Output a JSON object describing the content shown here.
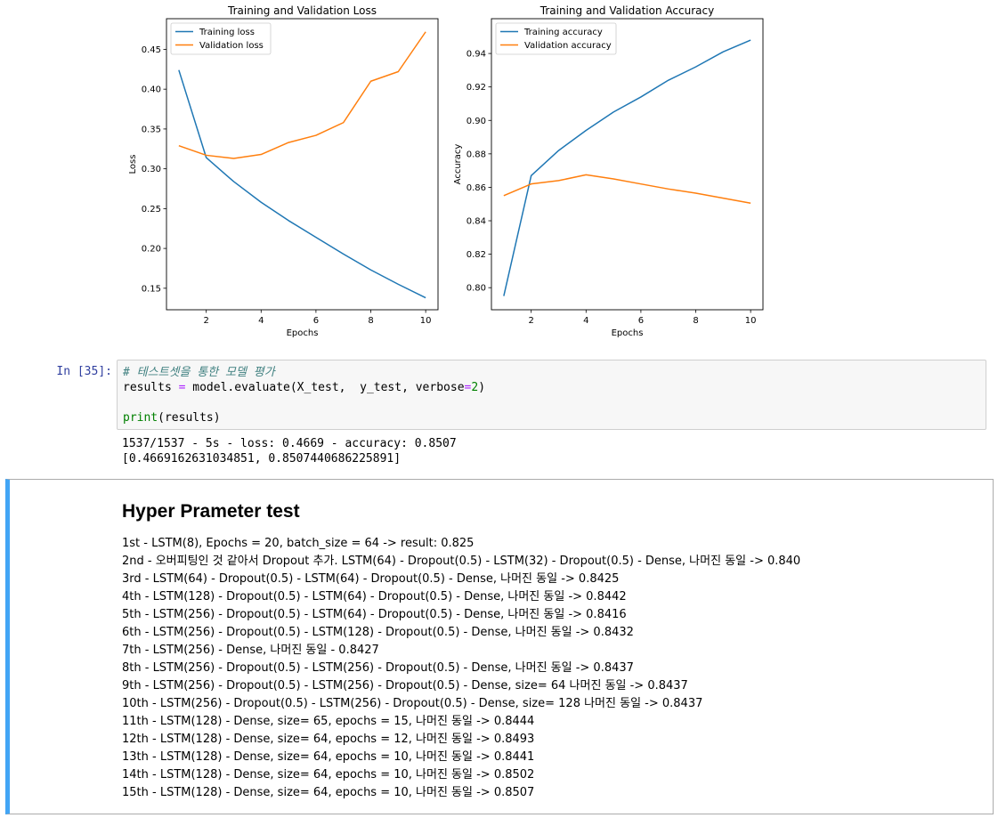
{
  "chart_data": [
    {
      "type": "line",
      "title": "Training and Validation Loss",
      "xlabel": "Epochs",
      "ylabel": "Loss",
      "x": [
        1,
        2,
        3,
        4,
        5,
        6,
        7,
        8,
        9,
        10
      ],
      "xlim": [
        0.55,
        10.45
      ],
      "ylim": [
        0.123,
        0.4885
      ],
      "xticks": [
        2,
        4,
        6,
        8,
        10
      ],
      "yticks": [
        0.15,
        0.2,
        0.25,
        0.3,
        0.35,
        0.4,
        0.45
      ],
      "ytick_labels": [
        "0.15",
        "0.20",
        "0.25",
        "0.30",
        "0.35",
        "0.40",
        "0.45"
      ],
      "legend_position": "top-left",
      "grid": false,
      "series": [
        {
          "name": "Training loss",
          "color": "#1f77b4",
          "values": [
            0.424,
            0.314,
            0.284,
            0.258,
            0.235,
            0.214,
            0.193,
            0.173,
            0.155,
            0.138
          ]
        },
        {
          "name": "Validation loss",
          "color": "#ff7f0e",
          "values": [
            0.329,
            0.317,
            0.313,
            0.318,
            0.333,
            0.342,
            0.358,
            0.41,
            0.422,
            0.472
          ]
        }
      ]
    },
    {
      "type": "line",
      "title": "Training and Validation Accuracy",
      "xlabel": "Epochs",
      "ylabel": "Accuracy",
      "x": [
        1,
        2,
        3,
        4,
        5,
        6,
        7,
        8,
        9,
        10
      ],
      "xlim": [
        0.55,
        10.45
      ],
      "ylim": [
        0.7868,
        0.9608
      ],
      "xticks": [
        2,
        4,
        6,
        8,
        10
      ],
      "yticks": [
        0.8,
        0.82,
        0.84,
        0.86,
        0.88,
        0.9,
        0.92,
        0.94
      ],
      "ytick_labels": [
        "0.80",
        "0.82",
        "0.84",
        "0.86",
        "0.88",
        "0.90",
        "0.92",
        "0.94"
      ],
      "legend_position": "top-left",
      "grid": false,
      "series": [
        {
          "name": "Training accuracy",
          "color": "#1f77b4",
          "values": [
            0.795,
            0.867,
            0.882,
            0.894,
            0.905,
            0.914,
            0.924,
            0.932,
            0.941,
            0.948
          ]
        },
        {
          "name": "Validation accuracy",
          "color": "#ff7f0e",
          "values": [
            0.855,
            0.862,
            0.864,
            0.8675,
            0.865,
            0.862,
            0.859,
            0.8565,
            0.8535,
            0.8505
          ]
        }
      ]
    }
  ],
  "code_cell": {
    "prompt": "In [35]:",
    "comment": "# 테스트셋을 통한 모델 평가",
    "line2_a": "results ",
    "line2_op": "=",
    "line2_b": " model.evaluate(X_test,  y_test, verbose",
    "line2_op2": "=",
    "line2_num": "2",
    "line2_c": ")",
    "line4_builtin": "print",
    "line4_rest": "(results)",
    "output_line1": "1537/1537 - 5s - loss: 0.4669 - accuracy: 0.8507",
    "output_line2": "[0.4669162631034851, 0.8507440686225891]"
  },
  "markdown_cell": {
    "title": "Hyper Prameter test",
    "items": [
      "1st - LSTM(8), Epochs = 20, batch_size = 64 -> result: 0.825",
      "2nd - 오버피팅인 것 같아서 Dropout 추가. LSTM(64) - Dropout(0.5) - LSTM(32) - Dropout(0.5) - Dense, 나머진 동일 -> 0.840",
      "3rd - LSTM(64) - Dropout(0.5) - LSTM(64) - Dropout(0.5) - Dense, 나머진 동일 -> 0.8425",
      "4th - LSTM(128) - Dropout(0.5) - LSTM(64) - Dropout(0.5) - Dense, 나머진 동일 -> 0.8442",
      "5th - LSTM(256) - Dropout(0.5) - LSTM(64) - Dropout(0.5) - Dense, 나머진 동일 -> 0.8416",
      "6th - LSTM(256) - Dropout(0.5) - LSTM(128) - Dropout(0.5) - Dense, 나머진 동일 -> 0.8432",
      "7th - LSTM(256) - Dense, 나머진 동일 - 0.8427",
      "8th - LSTM(256) - Dropout(0.5) - LSTM(256) - Dropout(0.5) - Dense, 나머진 동일 -> 0.8437",
      "9th - LSTM(256) - Dropout(0.5) - LSTM(256) - Dropout(0.5) - Dense, size= 64 나머진 동일 -> 0.8437",
      "10th - LSTM(256) - Dropout(0.5) - LSTM(256) - Dropout(0.5) - Dense, size= 128 나머진 동일 -> 0.8437",
      "11th - LSTM(128) - Dense, size= 65, epochs = 15, 나머진 동일 -> 0.8444",
      "12th - LSTM(128) - Dense, size= 64, epochs = 12, 나머진 동일 -> 0.8493",
      "13th - LSTM(128) - Dense, size= 64, epochs = 10, 나머진 동일 -> 0.8441",
      "14th - LSTM(128) - Dense, size= 64, epochs = 10, 나머진 동일 -> 0.8502",
      "15th - LSTM(128) - Dense, size= 64, epochs = 10, 나머진 동일 -> 0.8507"
    ]
  }
}
